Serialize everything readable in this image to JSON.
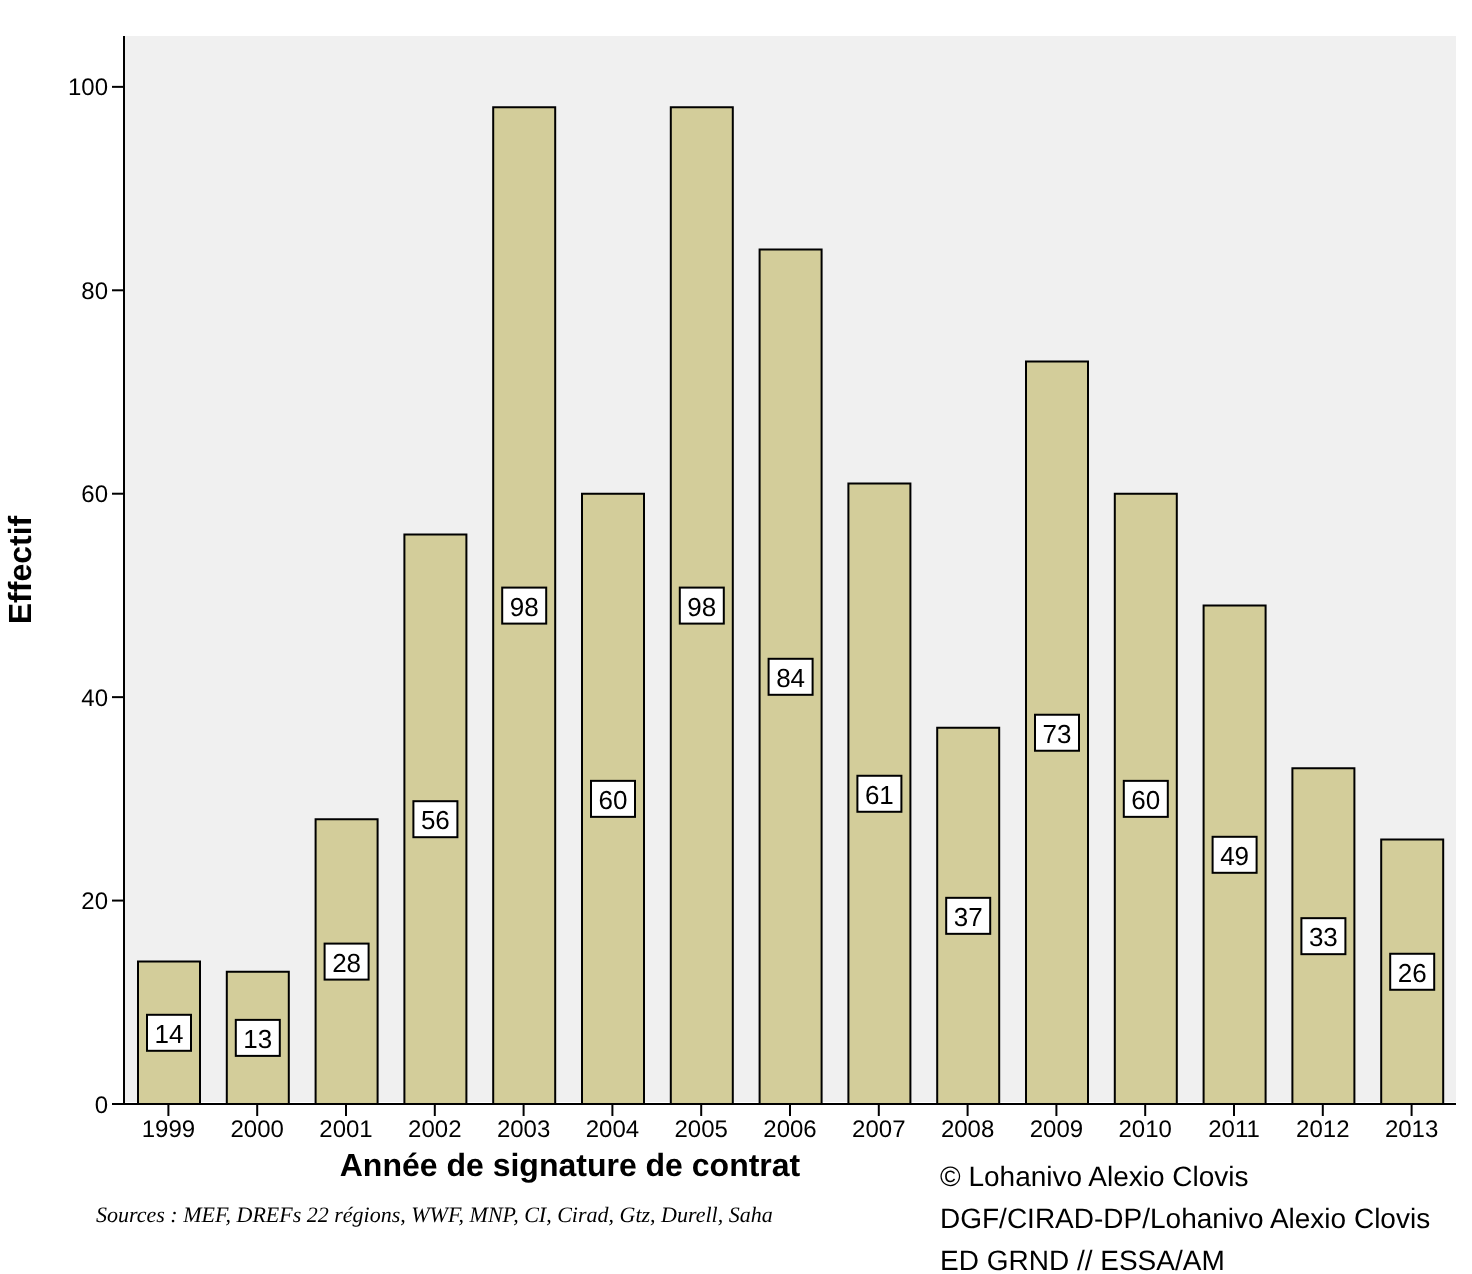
{
  "chart_data": {
    "type": "bar",
    "xlabel": "Année de signature de contrat",
    "ylabel": "Effectif",
    "categories": [
      "1999",
      "2000",
      "2001",
      "2002",
      "2003",
      "2004",
      "2005",
      "2006",
      "2007",
      "2008",
      "2009",
      "2010",
      "2011",
      "2012",
      "2013"
    ],
    "values": [
      14,
      13,
      28,
      56,
      98,
      60,
      98,
      84,
      61,
      37,
      73,
      60,
      49,
      33,
      26
    ],
    "color": "#d3cd9a",
    "ylim": [
      0,
      105
    ],
    "yticks": [
      0,
      20,
      40,
      60,
      80,
      100
    ],
    "grid": false,
    "data_labels": true,
    "legend": false,
    "annotations": [
      "Sources : MEF, DREFs 22 régions, WWF, MNP, CI, Cirad, Gtz, Durell, Saha",
      "© Lohanivo Alexio Clovis",
      "DGF/CIRAD-DP/Lohanivo Alexio Clovis",
      "ED GRND // ESSA/AM"
    ]
  }
}
